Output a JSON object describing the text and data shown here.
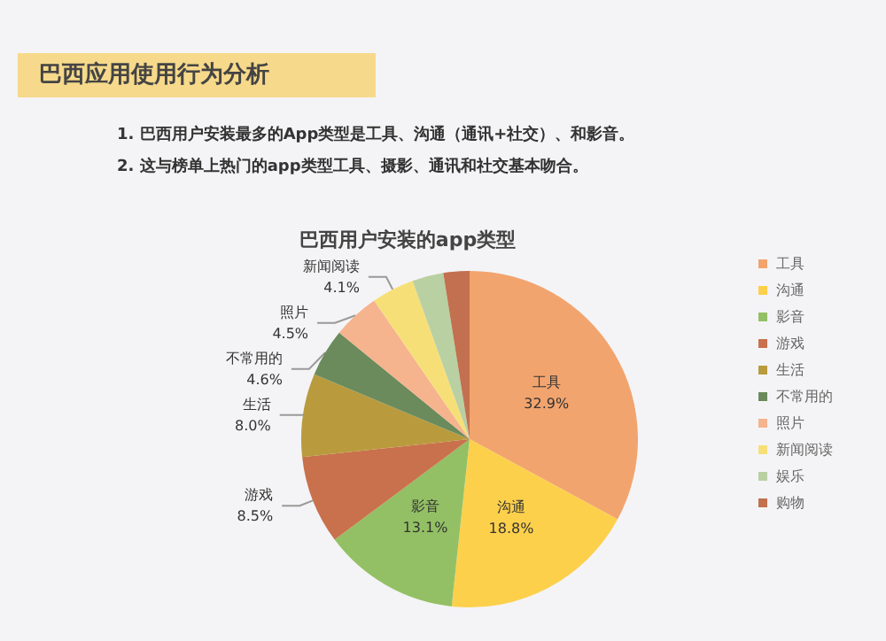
{
  "chart_data": {
    "type": "pie",
    "title": "巴西应用使用行为分析",
    "subtitle": "巴西用户安装的app类型",
    "annotations": [
      "1. 巴西用户安装最多的App类型是工具、沟通（通讯+社交）、和影音。",
      "2. 这与榜单上热门的app类型工具、摄影、通讯和社交基本吻合。"
    ],
    "categories": [
      "工具",
      "沟通",
      "影音",
      "游戏",
      "生活",
      "不常用的",
      "照片",
      "新闻阅读",
      "娱乐",
      "购物"
    ],
    "values": [
      32.9,
      18.8,
      13.1,
      8.5,
      8.0,
      4.6,
      4.5,
      4.1,
      3.0,
      2.5
    ],
    "value_labels": [
      "32.9%",
      "18.8%",
      "13.1%",
      "8.5%",
      "8.0%",
      "4.6%",
      "4.5%",
      "4.1%",
      null,
      null
    ],
    "colors": [
      "#f2a46e",
      "#fdd04c",
      "#93c064",
      "#c9714c",
      "#b99b3e",
      "#6b8b5c",
      "#f5b38e",
      "#f7df78",
      "#b9d0a2",
      "#c2704f"
    ],
    "legend": "right"
  }
}
